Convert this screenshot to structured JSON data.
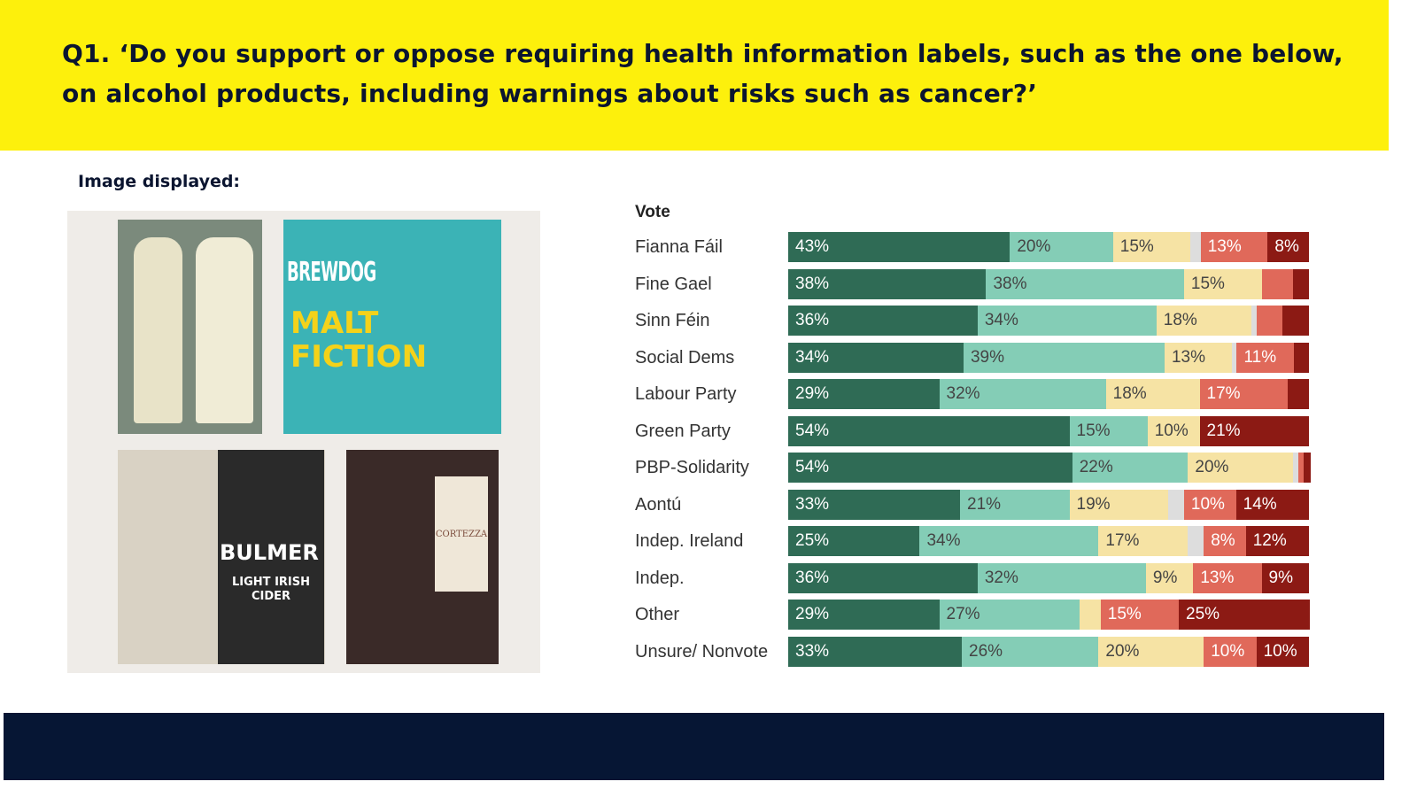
{
  "header": {
    "title": "Q1. ‘Do you support or oppose requiring health information labels, such as the one below, on alcohol products, including warnings about risks such as cancer?’"
  },
  "image_label": "Image displayed:",
  "photo_logos": [
    "BREWDOG",
    "MALT FICTION",
    "BULMER",
    "LIGHT IRISH CIDER",
    "CORTEZZA"
  ],
  "chart_data": {
    "type": "bar",
    "orientation": "horizontal-stacked-100",
    "group_label": "Vote",
    "categories": [
      "Fianna Fáil",
      "Fine Gael",
      "Sinn Féin",
      "Social Dems",
      "Labour Party",
      "Green Party",
      "PBP-Solidarity",
      "Aontú",
      "Indep. Ireland",
      "Indep.",
      "Other",
      "Unsure/ Nonvote"
    ],
    "segment_colors": [
      "#2f6b55",
      "#84cdb6",
      "#f6e3a4",
      "#dddddd",
      "#e0695a",
      "#8c1a14"
    ],
    "series": [
      {
        "values": [
          43,
          38,
          36,
          34,
          29,
          54,
          54,
          33,
          25,
          36,
          29,
          33
        ]
      },
      {
        "values": [
          20,
          38,
          34,
          39,
          32,
          15,
          22,
          21,
          34,
          32,
          27,
          26
        ]
      },
      {
        "values": [
          15,
          15,
          18,
          13,
          18,
          10,
          20,
          19,
          17,
          9,
          4,
          20
        ]
      },
      {
        "values": [
          2,
          0,
          1,
          1,
          0,
          0,
          1,
          3,
          3,
          0,
          0,
          0
        ]
      },
      {
        "values": [
          13,
          6,
          5,
          11,
          17,
          0,
          1,
          10,
          8,
          13,
          15,
          10
        ]
      },
      {
        "values": [
          8,
          3,
          5,
          3,
          4,
          21,
          1,
          14,
          12,
          9,
          25,
          10
        ]
      }
    ],
    "labels": [
      [
        "43%",
        "20%",
        "15%",
        "",
        "13%",
        "8%"
      ],
      [
        "38%",
        "38%",
        "15%",
        "",
        "",
        ""
      ],
      [
        "36%",
        "34%",
        "18%",
        "",
        "",
        ""
      ],
      [
        "34%",
        "39%",
        "13%",
        "",
        "11%",
        ""
      ],
      [
        "29%",
        "32%",
        "18%",
        "",
        "17%",
        ""
      ],
      [
        "54%",
        "15%",
        "10%",
        "",
        "",
        "21%"
      ],
      [
        "54%",
        "22%",
        "20%",
        "",
        "",
        ""
      ],
      [
        "33%",
        "21%",
        "19%",
        "",
        "10%",
        "14%"
      ],
      [
        "25%",
        "34%",
        "17%",
        "",
        "8%",
        "12%"
      ],
      [
        "36%",
        "32%",
        "9%",
        "",
        "13%",
        "9%"
      ],
      [
        "29%",
        "27%",
        "",
        "",
        "15%",
        "25%"
      ],
      [
        "33%",
        "26%",
        "20%",
        "",
        "10%",
        "10%"
      ]
    ],
    "xlim": [
      0,
      100
    ]
  }
}
